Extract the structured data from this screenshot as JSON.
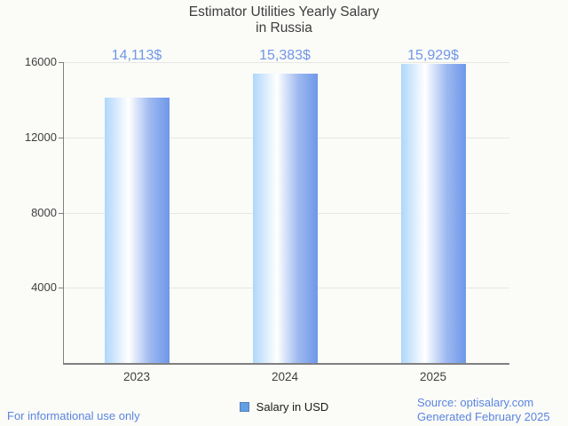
{
  "title": {
    "line1": "Estimator Utilities Yearly Salary",
    "line2": "in Russia"
  },
  "chart_data": {
    "type": "bar",
    "title": "Estimator Utilities Yearly Salary in Russia",
    "categories": [
      "2023",
      "2024",
      "2025"
    ],
    "series": [
      {
        "name": "Salary in USD",
        "values": [
          14113,
          15383,
          15929
        ]
      }
    ],
    "value_labels": [
      "14,113$",
      "15,383$",
      "15,929$"
    ],
    "xlabel": "",
    "ylabel": "",
    "ylim": [
      0,
      16000
    ],
    "yticks": [
      4000,
      8000,
      12000,
      16000
    ],
    "ytick_labels": [
      "4000",
      "8000",
      "12000",
      "16000"
    ],
    "grid": true,
    "legend_position": "bottom-center"
  },
  "legend": {
    "label": "Salary in USD"
  },
  "footer": {
    "left": "For informational use only",
    "source": "Source: optisalary.com",
    "generated": "Generated February 2025"
  },
  "colors": {
    "background": "#fbfbf8",
    "title_text": "#3d3d3d",
    "axis_text": "#3f3f3f",
    "value_text": "#7097e8",
    "footer_text": "#5b85e0",
    "grid": "#e7e7e5",
    "axis_line": "#808080",
    "bar_gradient_left": "#afd7fa",
    "bar_gradient_mid": "#ffffff",
    "bar_gradient_right": "#6e97e9",
    "legend_marker_fill": "#62a0e6",
    "legend_marker_border": "#5580b8"
  }
}
